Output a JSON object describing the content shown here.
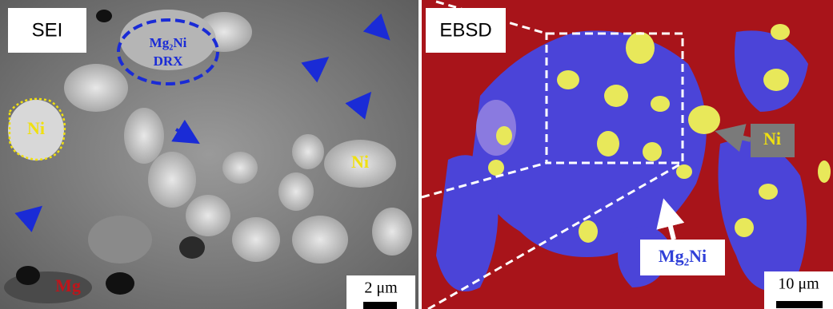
{
  "left_panel": {
    "label": "SEI",
    "annotations": {
      "mg2ni": "Mg₂Ni",
      "drx": "DRX",
      "ni_outlined": "Ni",
      "ni_right": "Ni",
      "mg": "Mg"
    },
    "scale_bar": "2 μm"
  },
  "right_panel": {
    "label": "EBSD",
    "annotations": {
      "ni": "Ni",
      "mg2ni": "Mg₂Ni"
    },
    "scale_bar": "10 μm"
  }
}
